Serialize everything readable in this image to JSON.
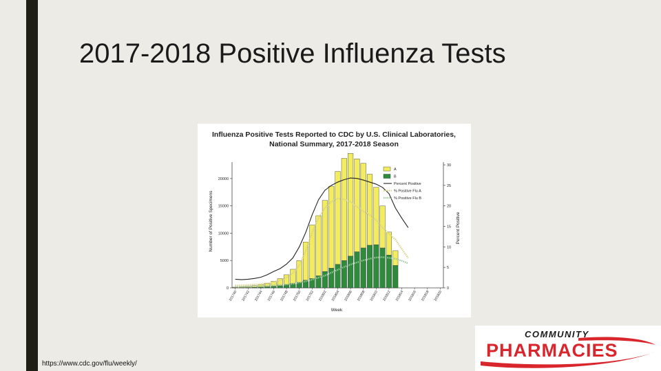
{
  "slide": {
    "title": "2017-2018 Positive Influenza Tests",
    "source": "https://www.cdc.gov/flu/weekly/"
  },
  "logo": {
    "line1": "COMMUNITY",
    "line2": "PHARMACIES",
    "color": "#d9262c"
  },
  "chart_data": {
    "type": "bar",
    "title_lines": [
      "Influenza Positive Tests Reported to CDC by U.S. Clinical Laboratories,",
      "National Summary, 2017-2018 Season"
    ],
    "xlabel": "Week",
    "ylabel": "Number of Positive Specimens",
    "y2label": "Percent Positive",
    "ylim": [
      0,
      22500
    ],
    "y2lim": [
      0,
      30
    ],
    "yticks": [
      0,
      5000,
      10000,
      15000,
      20000
    ],
    "y2ticks": [
      0,
      5,
      10,
      15,
      20,
      25,
      30
    ],
    "week_tick_labels": [
      "201740",
      "201742",
      "201744",
      "201746",
      "201748",
      "201750",
      "201752",
      "201802",
      "201804",
      "201806",
      "201808",
      "201810",
      "201812",
      "201814",
      "201816",
      "201818",
      "201820"
    ],
    "weeks": [
      "201740",
      "201741",
      "201742",
      "201743",
      "201744",
      "201745",
      "201746",
      "201747",
      "201748",
      "201749",
      "201750",
      "201751",
      "201752",
      "201801",
      "201802",
      "201803",
      "201804",
      "201805",
      "201806",
      "201807",
      "201808",
      "201809",
      "201810",
      "201811",
      "201812",
      "201813",
      "201814",
      "201815",
      "201816",
      "201817",
      "201818",
      "201819",
      "201820"
    ],
    "legend_position": "top-right",
    "colors": {
      "A": "#f3ec5e",
      "B": "#2e8b3c",
      "percent_positive": "#222222",
      "pct_flu_a": "#d8d28a",
      "pct_flu_b": "#9cc79c",
      "bar_edge": "#333333"
    },
    "series": [
      {
        "name": "A",
        "kind": "bar-stack",
        "axis": "left",
        "values": [
          100,
          150,
          200,
          300,
          450,
          650,
          900,
          1300,
          1800,
          2600,
          4000,
          7000,
          9800,
          11000,
          13000,
          15000,
          17000,
          18700,
          18800,
          17000,
          15500,
          13000,
          10500,
          7700,
          4200,
          2700,
          0,
          0,
          0,
          0,
          0,
          0,
          0
        ]
      },
      {
        "name": "B",
        "kind": "bar-stack",
        "axis": "left",
        "values": [
          30,
          50,
          70,
          100,
          140,
          200,
          300,
          400,
          600,
          800,
          1000,
          1400,
          1700,
          2200,
          3000,
          3600,
          4300,
          5000,
          5800,
          6600,
          7300,
          7800,
          7900,
          7300,
          6000,
          4100,
          0,
          0,
          0,
          0,
          0,
          0,
          0
        ]
      },
      {
        "name": "Percent Positive",
        "kind": "line",
        "axis": "right",
        "values": [
          2.1,
          2.0,
          2.1,
          2.3,
          2.6,
          3.2,
          4.0,
          4.7,
          5.8,
          7.3,
          10.0,
          13.5,
          17.8,
          21.5,
          23.8,
          25.0,
          25.8,
          26.4,
          26.8,
          26.7,
          26.3,
          25.8,
          25.3,
          24.5,
          23.0,
          19.5,
          17.0,
          14.7
        ]
      },
      {
        "name": "% Positive Flu A",
        "kind": "dotted-line",
        "axis": "right",
        "values": [
          0.6,
          0.6,
          0.7,
          0.8,
          0.9,
          1.1,
          1.4,
          1.8,
          2.5,
          3.6,
          5.5,
          9.0,
          13.5,
          17.0,
          19.5,
          21.0,
          21.8,
          21.6,
          21.0,
          19.8,
          18.7,
          17.8,
          16.5,
          14.7,
          13.2,
          11.8,
          9.5,
          7.3
        ]
      },
      {
        "name": "% Positive Flu B",
        "kind": "dotted-line",
        "axis": "right",
        "values": [
          0.3,
          0.3,
          0.3,
          0.4,
          0.4,
          0.5,
          0.6,
          0.7,
          0.8,
          1.0,
          1.3,
          1.6,
          2.0,
          2.5,
          3.0,
          3.7,
          4.4,
          5.1,
          5.7,
          6.2,
          6.7,
          7.1,
          7.4,
          7.5,
          7.3,
          7.1,
          6.6,
          6.0
        ]
      }
    ]
  }
}
